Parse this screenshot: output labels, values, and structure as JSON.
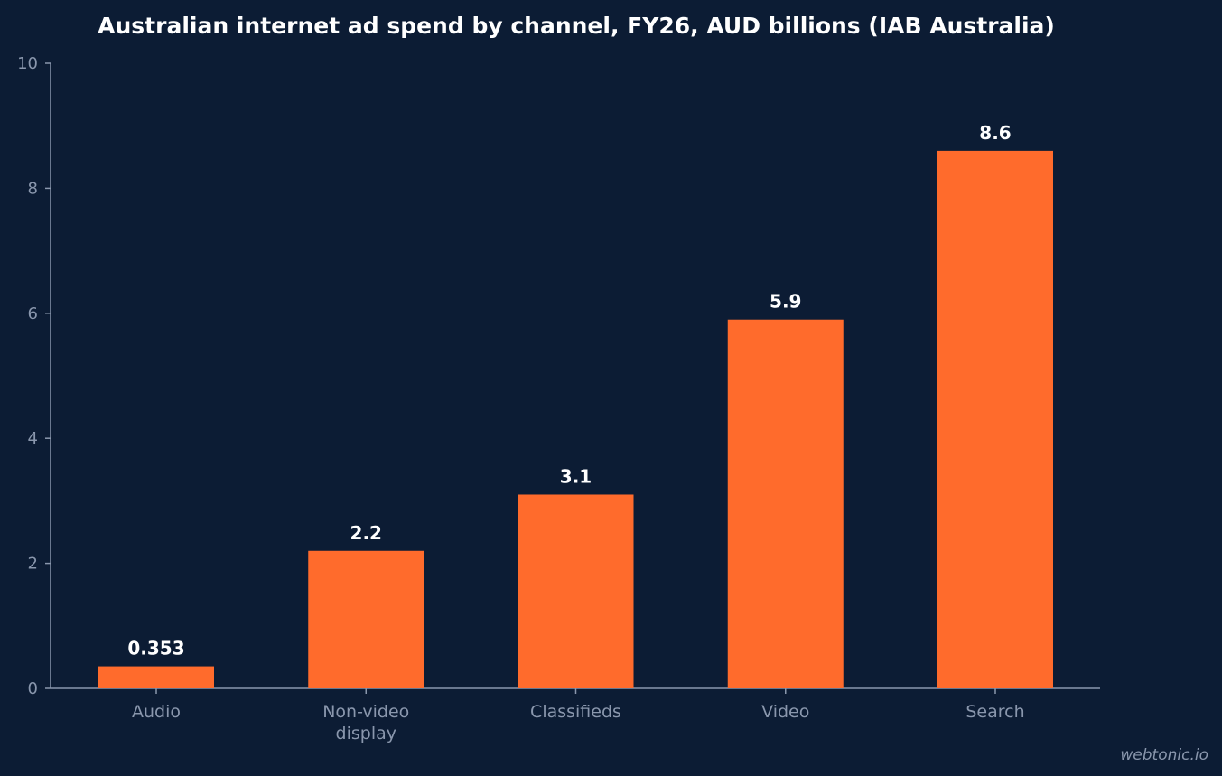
{
  "chart_data": {
    "type": "bar",
    "title": "Australian internet ad spend by channel, FY26, AUD billions (IAB Australia)",
    "categories": [
      [
        "Audio"
      ],
      [
        "Non-video",
        "display"
      ],
      [
        "Classifieds"
      ],
      [
        "Video"
      ],
      [
        "Search"
      ]
    ],
    "values": [
      0.353,
      2.2,
      3.1,
      5.9,
      8.6
    ],
    "value_labels": [
      "0.353",
      "2.2",
      "3.1",
      "5.9",
      "8.6"
    ],
    "xlabel": "",
    "ylabel": "",
    "ylim": [
      0,
      10
    ],
    "yticks": [
      0,
      2,
      4,
      6,
      8,
      10
    ],
    "grid": false,
    "bar_color": "#ff6b2c"
  },
  "watermark": "webtonic.io"
}
